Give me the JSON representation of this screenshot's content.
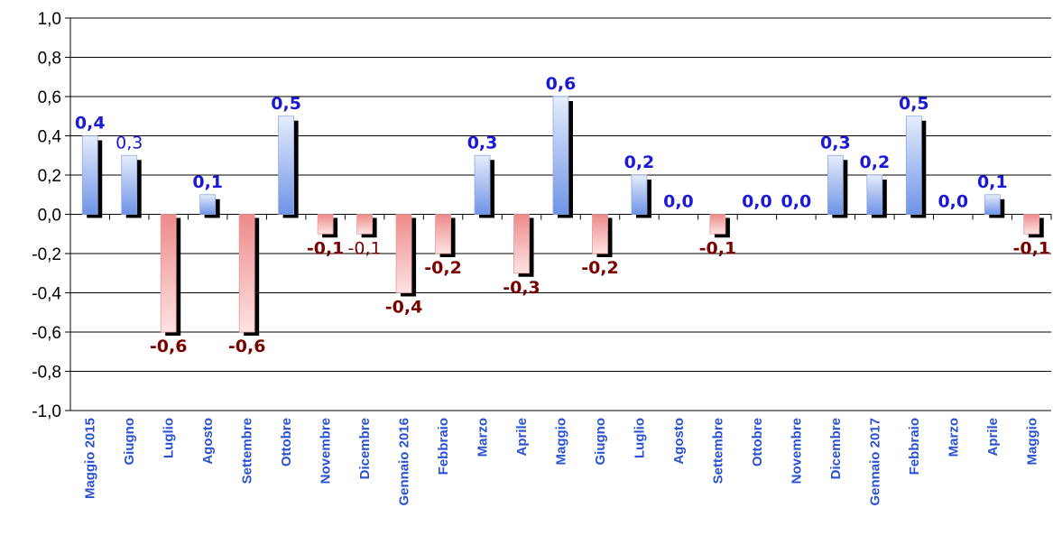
{
  "chart_data": {
    "type": "bar",
    "categories": [
      "Maggio 2015",
      "Giugno",
      "Luglio",
      "Agosto",
      "Settembre",
      "Ottobre",
      "Novembre",
      "Dicembre",
      "Gennaio 2016",
      "Febbraio",
      "Marzo",
      "Aprile",
      "Maggio",
      "Giugno",
      "Luglio",
      "Agosto",
      "Settembre",
      "Ottobre",
      "Novembre",
      "Dicembre",
      "Gennaio 2017",
      "Febbraio",
      "Marzo",
      "Aprile",
      "Maggio"
    ],
    "values": [
      0.4,
      0.3,
      -0.6,
      0.1,
      -0.6,
      0.5,
      -0.1,
      -0.1,
      -0.4,
      -0.2,
      0.3,
      -0.3,
      0.6,
      -0.2,
      0.2,
      0.0,
      -0.1,
      0.0,
      0.0,
      0.3,
      0.2,
      0.5,
      0.0,
      0.1,
      -0.1
    ],
    "data_labels": [
      "0,4",
      "0,3",
      "-0,6",
      "0,1",
      "-0,6",
      "0,5",
      "-0,1",
      "-0,1",
      "-0,4",
      "-0,2",
      "0,3",
      "-0,3",
      "0,6",
      "-0,2",
      "0,2",
      "0,0",
      "-0,1",
      "0,0",
      "0,0",
      "0,3",
      "0,2",
      "0,5",
      "0,0",
      "0,1",
      "-0,1"
    ],
    "label_bold": [
      true,
      false,
      true,
      true,
      true,
      true,
      true,
      false,
      true,
      true,
      true,
      true,
      true,
      true,
      true,
      true,
      true,
      true,
      true,
      true,
      true,
      true,
      true,
      true,
      true
    ],
    "y_ticks": [
      "1,0",
      "0,8",
      "0,6",
      "0,4",
      "0,2",
      "0,0",
      "-0,2",
      "-0,4",
      "-0,6",
      "-0,8",
      "-1,0"
    ],
    "ylim": [
      -1.0,
      1.0
    ],
    "grid": true,
    "legend": "none",
    "title": "",
    "xlabel": "",
    "ylabel": "",
    "colors": {
      "positive_label": "#1a1ad6",
      "negative_label": "#7a0000",
      "category_label": "#2a52d0",
      "positive_bar_light": "#e6edfb",
      "positive_bar_dark": "#6f93e6",
      "negative_bar_light": "#fde3e3",
      "negative_bar_dark": "#ee8a8a",
      "shadow": "#000000",
      "grid": "#000000"
    }
  }
}
